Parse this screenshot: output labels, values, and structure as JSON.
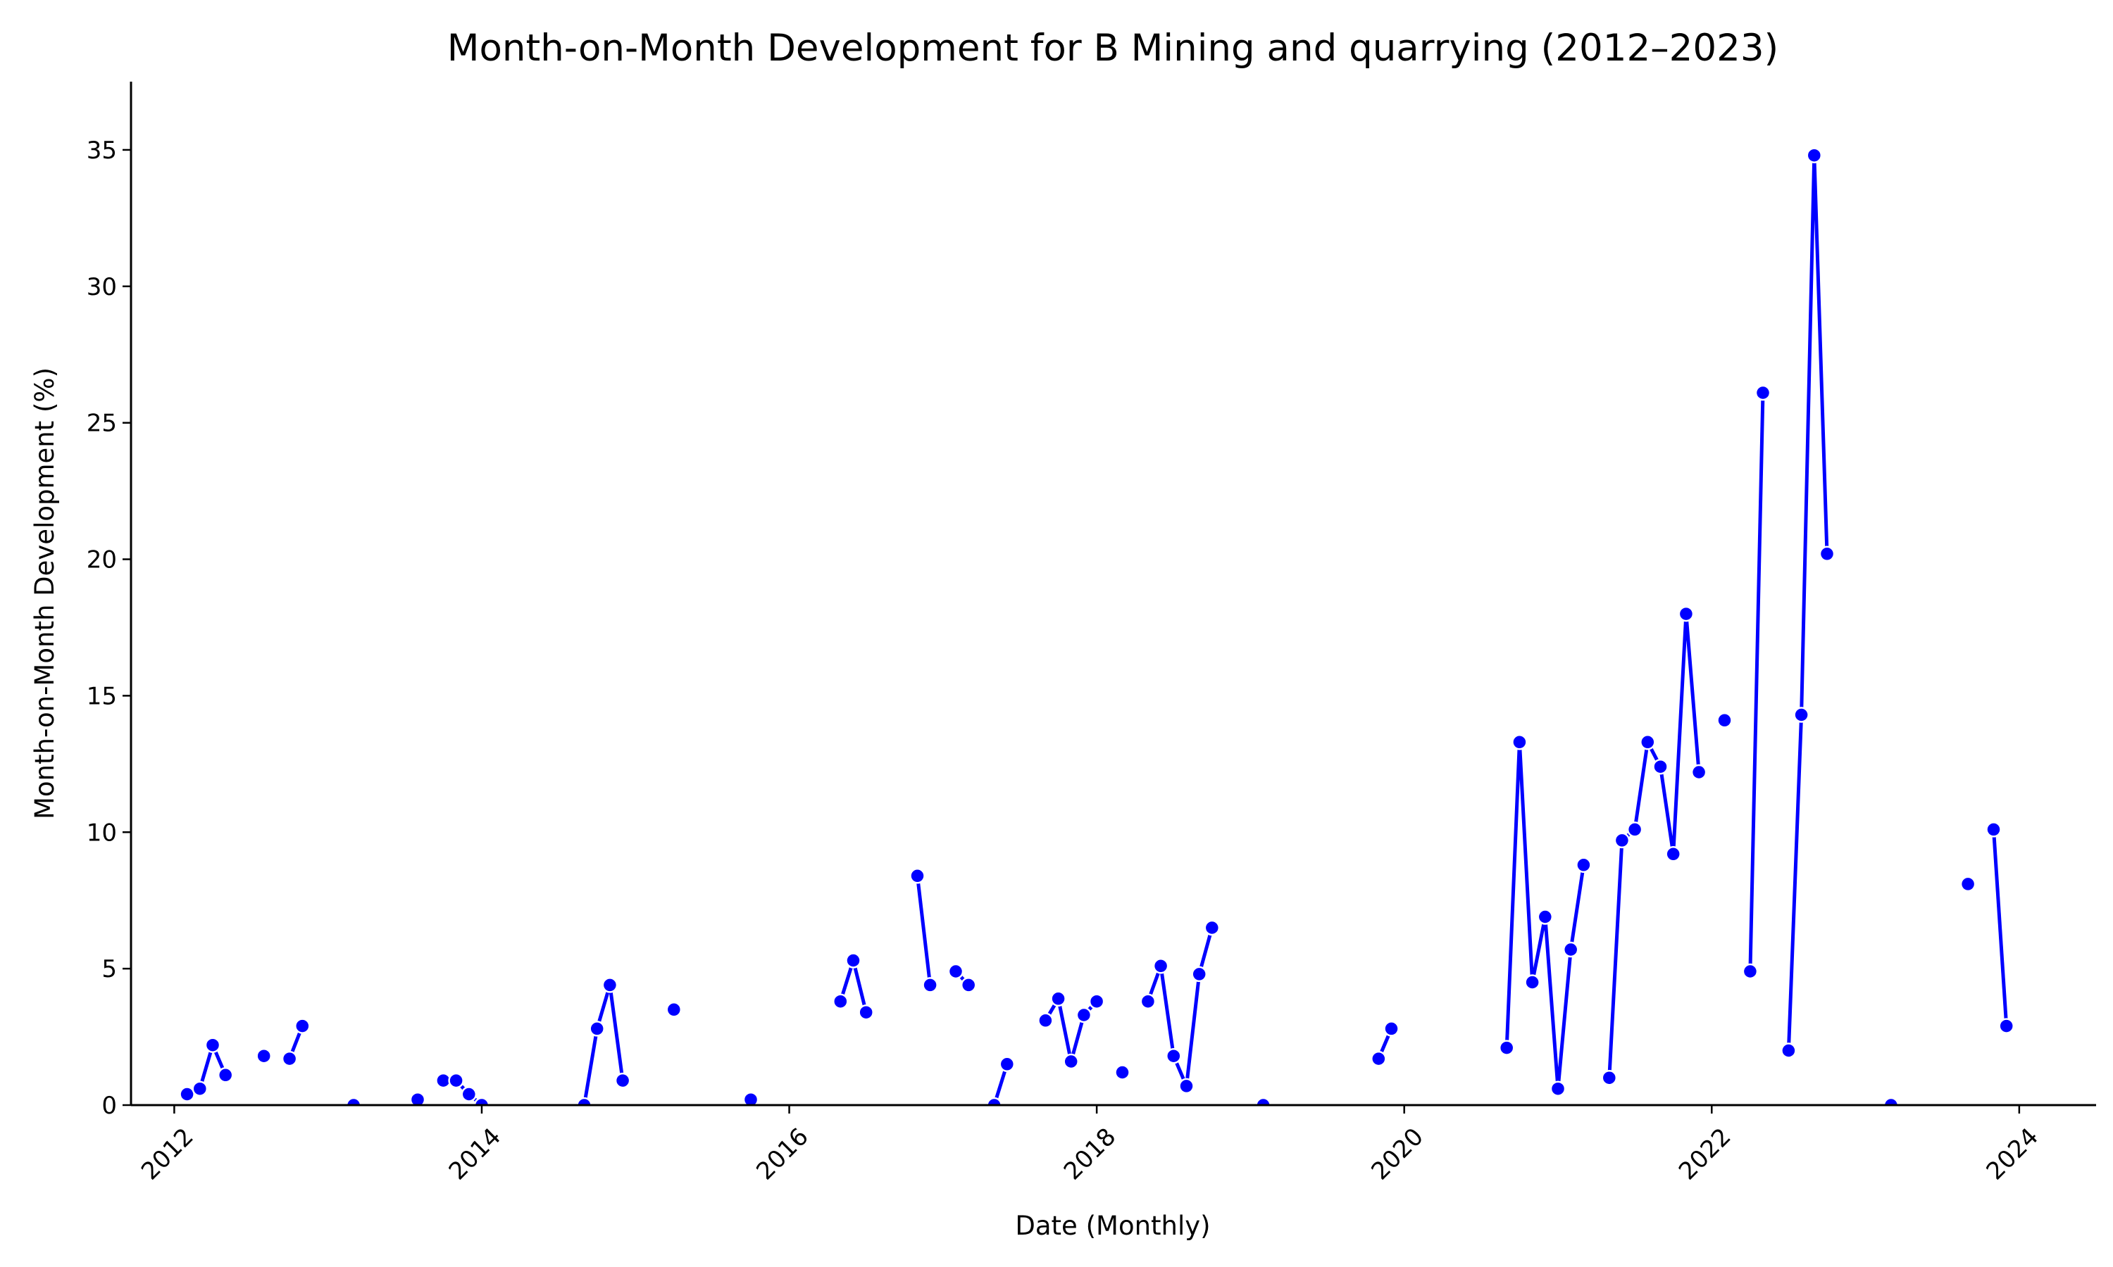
{
  "chart_data": {
    "type": "line",
    "title": "Month-on-Month Development for B Mining and quarrying (2012–2023)",
    "xlabel": "Date (Monthly)",
    "ylabel": "Month-on-Month Development (%)",
    "xlim": [
      "2011-09-20",
      "2024-07-01"
    ],
    "ylim": [
      0,
      37.5
    ],
    "x_ticks": [
      "2012",
      "2014",
      "2016",
      "2018",
      "2020",
      "2022",
      "2024"
    ],
    "y_ticks": [
      "0",
      "5",
      "10",
      "15",
      "20",
      "25",
      "30",
      "35"
    ],
    "grid": false,
    "color": "#0000ff",
    "series": [
      {
        "points": [
          [
            "2012-02",
            0.4
          ],
          [
            "2012-03",
            0.6
          ],
          [
            "2012-04",
            2.2
          ],
          [
            "2012-05",
            1.1
          ],
          [
            "2012-06",
            null
          ],
          [
            "2012-07",
            null
          ],
          [
            "2012-08",
            1.8
          ],
          [
            "2012-09",
            null
          ],
          [
            "2012-10",
            1.7
          ],
          [
            "2012-11",
            2.9
          ],
          [
            "2012-12",
            null
          ],
          [
            "2013-01",
            null
          ],
          [
            "2013-02",
            null
          ],
          [
            "2013-03",
            0.0
          ],
          [
            "2013-04",
            null
          ],
          [
            "2013-05",
            null
          ],
          [
            "2013-06",
            null
          ],
          [
            "2013-07",
            null
          ],
          [
            "2013-08",
            0.2
          ],
          [
            "2013-09",
            null
          ],
          [
            "2013-10",
            0.9
          ],
          [
            "2013-11",
            0.9
          ],
          [
            "2013-12",
            0.4
          ],
          [
            "2014-01",
            0.0
          ],
          [
            "2014-02",
            null
          ],
          [
            "2014-03",
            null
          ],
          [
            "2014-04",
            null
          ],
          [
            "2014-05",
            null
          ],
          [
            "2014-06",
            null
          ],
          [
            "2014-07",
            null
          ],
          [
            "2014-08",
            null
          ],
          [
            "2014-09",
            0.0
          ],
          [
            "2014-10",
            2.8
          ],
          [
            "2014-11",
            4.4
          ],
          [
            "2014-12",
            0.9
          ],
          [
            "2015-01",
            null
          ],
          [
            "2015-02",
            null
          ],
          [
            "2015-03",
            null
          ],
          [
            "2015-04",
            3.5
          ],
          [
            "2015-05",
            null
          ],
          [
            "2015-06",
            null
          ],
          [
            "2015-07",
            null
          ],
          [
            "2015-08",
            null
          ],
          [
            "2015-09",
            null
          ],
          [
            "2015-10",
            0.2
          ],
          [
            "2015-11",
            null
          ],
          [
            "2015-12",
            null
          ],
          [
            "2016-01",
            null
          ],
          [
            "2016-02",
            null
          ],
          [
            "2016-03",
            null
          ],
          [
            "2016-04",
            null
          ],
          [
            "2016-05",
            3.8
          ],
          [
            "2016-06",
            5.3
          ],
          [
            "2016-07",
            3.4
          ],
          [
            "2016-08",
            null
          ],
          [
            "2016-09",
            null
          ],
          [
            "2016-10",
            null
          ],
          [
            "2016-11",
            8.4
          ],
          [
            "2016-12",
            4.4
          ],
          [
            "2017-01",
            null
          ],
          [
            "2017-02",
            4.9
          ],
          [
            "2017-03",
            4.4
          ],
          [
            "2017-04",
            null
          ],
          [
            "2017-05",
            0.0
          ],
          [
            "2017-06",
            1.5
          ],
          [
            "2017-07",
            null
          ],
          [
            "2017-08",
            null
          ],
          [
            "2017-09",
            3.1
          ],
          [
            "2017-10",
            3.9
          ],
          [
            "2017-11",
            1.6
          ],
          [
            "2017-12",
            3.3
          ],
          [
            "2018-01",
            3.8
          ],
          [
            "2018-02",
            null
          ],
          [
            "2018-03",
            1.2
          ],
          [
            "2018-04",
            null
          ],
          [
            "2018-05",
            3.8
          ],
          [
            "2018-06",
            5.1
          ],
          [
            "2018-07",
            1.8
          ],
          [
            "2018-08",
            0.7
          ],
          [
            "2018-09",
            4.8
          ],
          [
            "2018-10",
            6.5
          ],
          [
            "2018-11",
            null
          ],
          [
            "2018-12",
            null
          ],
          [
            "2019-01",
            null
          ],
          [
            "2019-02",
            0.0
          ],
          [
            "2019-03",
            null
          ],
          [
            "2019-04",
            null
          ],
          [
            "2019-05",
            null
          ],
          [
            "2019-06",
            null
          ],
          [
            "2019-07",
            null
          ],
          [
            "2019-08",
            null
          ],
          [
            "2019-09",
            null
          ],
          [
            "2019-10",
            null
          ],
          [
            "2019-11",
            1.7
          ],
          [
            "2019-12",
            2.8
          ],
          [
            "2020-01",
            null
          ],
          [
            "2020-02",
            null
          ],
          [
            "2020-03",
            null
          ],
          [
            "2020-04",
            null
          ],
          [
            "2020-05",
            null
          ],
          [
            "2020-06",
            null
          ],
          [
            "2020-07",
            null
          ],
          [
            "2020-08",
            null
          ],
          [
            "2020-09",
            2.1
          ],
          [
            "2020-10",
            13.3
          ],
          [
            "2020-11",
            4.5
          ],
          [
            "2020-12",
            6.9
          ],
          [
            "2021-01",
            0.6
          ],
          [
            "2021-02",
            5.7
          ],
          [
            "2021-03",
            8.8
          ],
          [
            "2021-04",
            null
          ],
          [
            "2021-05",
            1.0
          ],
          [
            "2021-06",
            9.7
          ],
          [
            "2021-07",
            10.1
          ],
          [
            "2021-08",
            13.3
          ],
          [
            "2021-09",
            12.4
          ],
          [
            "2021-10",
            9.2
          ],
          [
            "2021-11",
            18.0
          ],
          [
            "2021-12",
            12.2
          ],
          [
            "2022-01",
            null
          ],
          [
            "2022-02",
            14.1
          ],
          [
            "2022-03",
            null
          ],
          [
            "2022-04",
            4.9
          ],
          [
            "2022-05",
            26.1
          ],
          [
            "2022-06",
            null
          ],
          [
            "2022-07",
            2.0
          ],
          [
            "2022-08",
            14.3
          ],
          [
            "2022-09",
            34.8
          ],
          [
            "2022-10",
            20.2
          ],
          [
            "2022-11",
            null
          ],
          [
            "2022-12",
            null
          ],
          [
            "2023-01",
            null
          ],
          [
            "2023-02",
            null
          ],
          [
            "2023-03",
            0.0
          ],
          [
            "2023-04",
            null
          ],
          [
            "2023-05",
            null
          ],
          [
            "2023-06",
            null
          ],
          [
            "2023-07",
            null
          ],
          [
            "2023-08",
            null
          ],
          [
            "2023-09",
            8.1
          ],
          [
            "2023-10",
            null
          ],
          [
            "2023-11",
            10.1
          ],
          [
            "2023-12",
            2.9
          ]
        ]
      }
    ]
  }
}
